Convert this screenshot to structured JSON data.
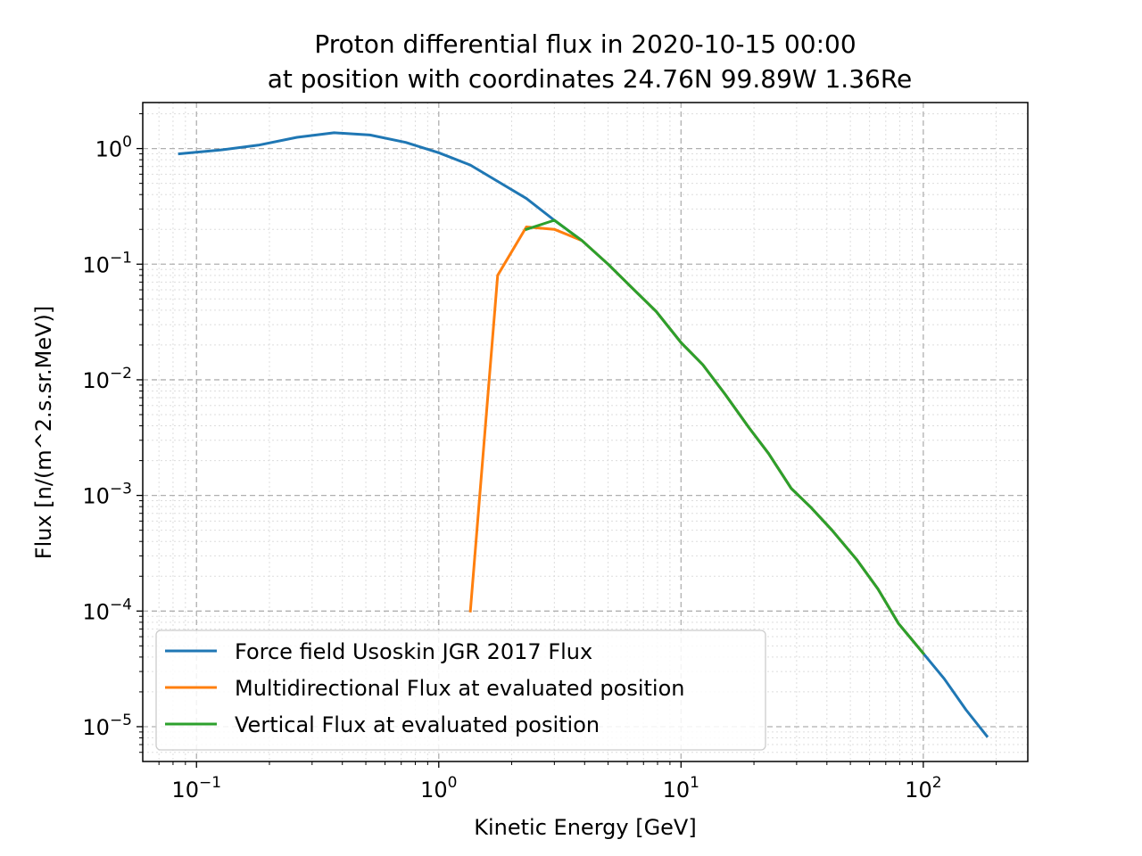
{
  "chart_data": {
    "type": "line",
    "title": "Proton differential flux in 2020-10-15 00:00",
    "subtitle": "at position with coordinates 24.76N 99.89W 1.36Re",
    "xlabel": "Kinetic Energy [GeV]",
    "ylabel": "Flux [n/(m^2.s.sr.MeV)]",
    "xscale": "log",
    "yscale": "log",
    "xlim": [
      0.06,
      270
    ],
    "ylim": [
      5e-06,
      2.5
    ],
    "grid": true,
    "legend_position": "lower-left",
    "x_ticks": [
      {
        "value": 0.1,
        "base": "10",
        "exp": "−1"
      },
      {
        "value": 1,
        "base": "10",
        "exp": "0"
      },
      {
        "value": 10,
        "base": "10",
        "exp": "1"
      },
      {
        "value": 100,
        "base": "10",
        "exp": "2"
      }
    ],
    "y_ticks": [
      {
        "value": 1,
        "base": "10",
        "exp": "0"
      },
      {
        "value": 0.1,
        "base": "10",
        "exp": "−1"
      },
      {
        "value": 0.01,
        "base": "10",
        "exp": "−2"
      },
      {
        "value": 0.001,
        "base": "10",
        "exp": "−3"
      },
      {
        "value": 0.0001,
        "base": "10",
        "exp": "−4"
      },
      {
        "value": 1e-05,
        "base": "10",
        "exp": "−5"
      }
    ],
    "series": [
      {
        "name": "Force field Usoskin JGR 2017 Flux",
        "color": "#1f77b4",
        "points": [
          [
            0.085,
            0.9
          ],
          [
            0.125,
            0.97
          ],
          [
            0.18,
            1.07
          ],
          [
            0.26,
            1.25
          ],
          [
            0.37,
            1.37
          ],
          [
            0.52,
            1.31
          ],
          [
            0.73,
            1.13
          ],
          [
            1.0,
            0.92
          ],
          [
            1.35,
            0.72
          ],
          [
            1.75,
            0.52
          ],
          [
            2.3,
            0.37
          ],
          [
            3.0,
            0.24
          ],
          [
            3.9,
            0.16
          ],
          [
            5.0,
            0.1
          ],
          [
            6.3,
            0.062
          ],
          [
            7.9,
            0.039
          ],
          [
            10,
            0.021
          ],
          [
            12.3,
            0.0135
          ],
          [
            15.2,
            0.0075
          ],
          [
            19,
            0.0039
          ],
          [
            23,
            0.0023
          ],
          [
            28.5,
            0.00115
          ],
          [
            34.5,
            0.00078
          ],
          [
            42,
            0.0005
          ],
          [
            53,
            0.00028
          ],
          [
            65,
            0.000155
          ],
          [
            79,
            7.8e-05
          ],
          [
            100,
            4.3e-05
          ],
          [
            122,
            2.6e-05
          ],
          [
            150,
            1.4e-05
          ],
          [
            183,
            8.3e-06
          ]
        ]
      },
      {
        "name": "Multidirectional Flux at evaluated position",
        "color": "#ff7f0e",
        "points": [
          [
            1.35,
            0.0001
          ],
          [
            1.75,
            0.08
          ],
          [
            2.3,
            0.21
          ],
          [
            3.0,
            0.2
          ],
          [
            3.9,
            0.16
          ],
          [
            5.0,
            0.1
          ],
          [
            6.3,
            0.062
          ],
          [
            7.9,
            0.039
          ],
          [
            10,
            0.021
          ],
          [
            12.3,
            0.0135
          ],
          [
            15.2,
            0.0075
          ],
          [
            19,
            0.0039
          ],
          [
            23,
            0.0023
          ],
          [
            28.5,
            0.00115
          ],
          [
            34.5,
            0.00078
          ],
          [
            42,
            0.0005
          ],
          [
            53,
            0.00028
          ],
          [
            65,
            0.000155
          ],
          [
            79,
            7.8e-05
          ],
          [
            100,
            4.3e-05
          ]
        ]
      },
      {
        "name": "Vertical Flux at evaluated position",
        "color": "#2ca02c",
        "points": [
          [
            2.3,
            0.2
          ],
          [
            3.0,
            0.24
          ],
          [
            3.9,
            0.16
          ],
          [
            5.0,
            0.1
          ],
          [
            6.3,
            0.062
          ],
          [
            7.9,
            0.039
          ],
          [
            10,
            0.021
          ],
          [
            12.3,
            0.0135
          ],
          [
            15.2,
            0.0075
          ],
          [
            19,
            0.0039
          ],
          [
            23,
            0.0023
          ],
          [
            28.5,
            0.00115
          ],
          [
            34.5,
            0.00078
          ],
          [
            42,
            0.0005
          ],
          [
            53,
            0.00028
          ],
          [
            65,
            0.000155
          ],
          [
            79,
            7.8e-05
          ],
          [
            100,
            4.3e-05
          ]
        ]
      }
    ]
  }
}
